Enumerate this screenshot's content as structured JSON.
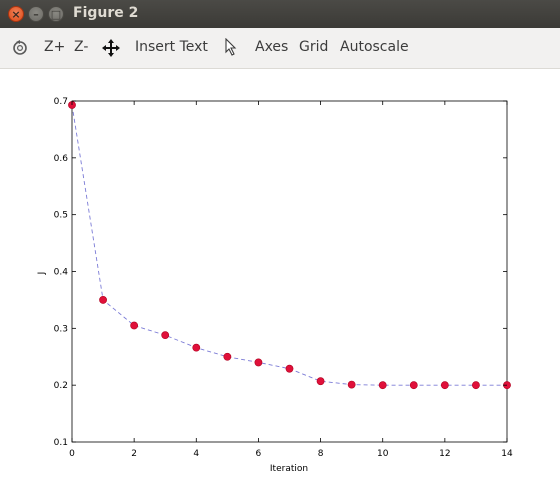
{
  "window": {
    "title": "Figure 2"
  },
  "toolbar": {
    "zoom_in_label": "Z+",
    "zoom_out_label": "Z-",
    "insert_text_label": "Insert Text",
    "axes_label": "Axes",
    "grid_label": "Grid",
    "autoscale_label": "Autoscale"
  },
  "icons": [
    "rotate-icon",
    "pan-icon",
    "select-arrow-icon"
  ],
  "chart_data": {
    "type": "line",
    "title": "",
    "xlabel": "Iteration",
    "ylabel": "J",
    "xlim": [
      0,
      14
    ],
    "ylim": [
      0.1,
      0.7
    ],
    "x_ticks": [
      0,
      2,
      4,
      6,
      8,
      10,
      12,
      14
    ],
    "y_ticks": [
      0.1,
      0.2,
      0.3,
      0.4,
      0.5,
      0.6,
      0.7
    ],
    "y_tick_labels": [
      "0.1",
      "0.2",
      "0.3",
      "0.4",
      "0.5",
      "0.6",
      "0.7"
    ],
    "x": [
      0,
      1,
      2,
      3,
      4,
      5,
      6,
      7,
      8,
      9,
      10,
      11,
      12,
      13,
      14
    ],
    "y": [
      0.693,
      0.35,
      0.305,
      0.288,
      0.266,
      0.25,
      0.24,
      0.229,
      0.207,
      0.201,
      0.2,
      0.2,
      0.2,
      0.2,
      0.2
    ],
    "line_color": "#7b7bd6",
    "marker_color": "#e0103a",
    "grid": false
  }
}
